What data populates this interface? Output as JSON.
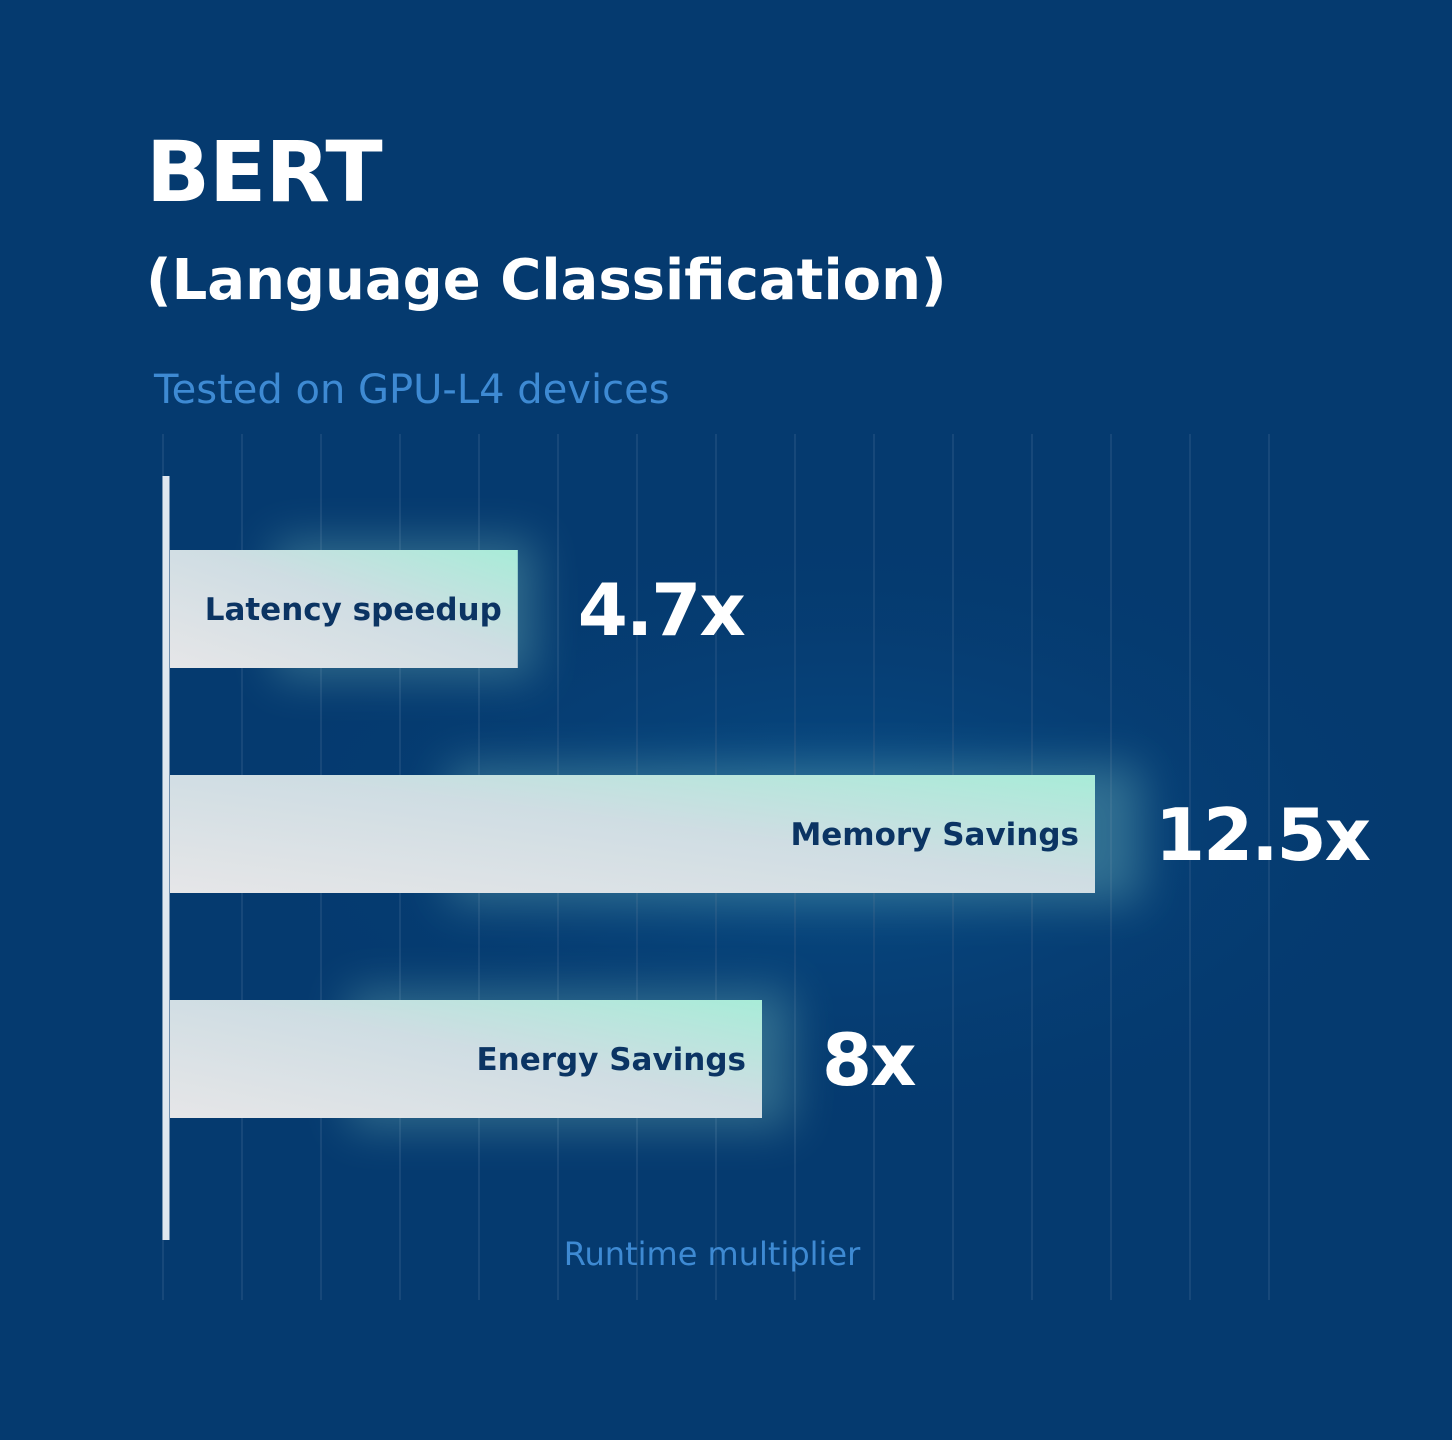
{
  "header": {
    "title": "BERT",
    "subtitle": "(Language Classification)",
    "caption": "Tested on GPU-L4 devices"
  },
  "colors": {
    "background": "#053a6f",
    "gridline": "#1f4f80",
    "axis": "#dfe7f0",
    "bar_light": "#e4e4e6",
    "bar_glow": "#9fe8d6",
    "bar_label": "#0b3463",
    "value_text": "#ffffff",
    "caption": "#3e8ad3"
  },
  "chart_data": {
    "type": "bar",
    "orientation": "horizontal",
    "title": "BERT (Language Classification)",
    "subtitle": "Tested on GPU-L4 devices",
    "xlabel": "Runtime multiplier",
    "ylabel": "",
    "categories": [
      "Latency speedup",
      "Memory Savings",
      "Energy Savings"
    ],
    "values": [
      4.7,
      12.5,
      8
    ],
    "value_labels": [
      "4.7x",
      "12.5x",
      "8x"
    ],
    "xlim": [
      0,
      15
    ],
    "grid": true,
    "legend": "none"
  }
}
